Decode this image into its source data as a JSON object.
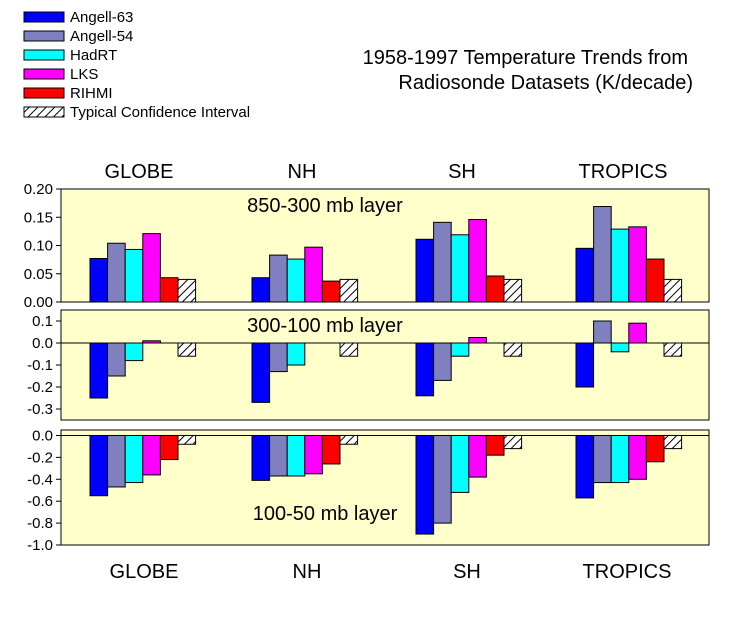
{
  "chart_data": {
    "type": "bar",
    "title": "1958-1997 Temperature Trends from\nRadiosonde Datasets (K/decade)",
    "categories": [
      "GLOBE",
      "NH",
      "SH",
      "TROPICS"
    ],
    "series": [
      {
        "name": "Angell-63",
        "color": "#0000ff"
      },
      {
        "name": "Angell-54",
        "color": "#8080c0"
      },
      {
        "name": "HadRT",
        "color": "#00ffff"
      },
      {
        "name": "LKS",
        "color": "#ff00ff"
      },
      {
        "name": "RIHMI",
        "color": "#ff0000"
      },
      {
        "name": "Typical Confidence Interval",
        "color": "#ffffff",
        "pattern": "hatch"
      }
    ],
    "panels": [
      {
        "label": "850-300 mb layer",
        "ylim": [
          0,
          0.2
        ],
        "yticks": [
          "0.20",
          "0.15",
          "0.10",
          "0.05",
          "0.00"
        ],
        "ytick_values": [
          0.2,
          0.15,
          0.1,
          0.05,
          0.0
        ],
        "values": [
          [
            0.077,
            0.104,
            0.093,
            0.121,
            0.043,
            0.04
          ],
          [
            0.043,
            0.083,
            0.076,
            0.097,
            0.037,
            0.04
          ],
          [
            0.111,
            0.141,
            0.119,
            0.146,
            0.046,
            0.04
          ],
          [
            0.095,
            0.169,
            0.129,
            0.133,
            0.076,
            0.04
          ]
        ]
      },
      {
        "label": "300-100 mb layer",
        "ylim": [
          -0.35,
          0.15
        ],
        "yticks": [
          "0.1",
          "0.0",
          "-0.1",
          "-0.2",
          "-0.3"
        ],
        "ytick_values": [
          0.1,
          0.0,
          -0.1,
          -0.2,
          -0.3
        ],
        "values": [
          [
            -0.25,
            -0.15,
            -0.08,
            0.01,
            0.0,
            -0.06
          ],
          [
            -0.27,
            -0.13,
            -0.1,
            0.0,
            0.0,
            -0.06
          ],
          [
            -0.24,
            -0.17,
            -0.06,
            0.025,
            0.0,
            -0.06
          ],
          [
            -0.2,
            0.1,
            -0.04,
            0.09,
            0.0,
            -0.06
          ]
        ]
      },
      {
        "label": "100-50 mb layer",
        "ylim": [
          -1.0,
          0.05
        ],
        "yticks": [
          "0.0",
          "-0.2",
          "-0.4",
          "-0.6",
          "-0.8",
          "-1.0"
        ],
        "ytick_values": [
          0.0,
          -0.2,
          -0.4,
          -0.6,
          -0.8,
          -1.0
        ],
        "values": [
          [
            -0.55,
            -0.47,
            -0.43,
            -0.36,
            -0.22,
            -0.08
          ],
          [
            -0.41,
            -0.37,
            -0.37,
            -0.35,
            -0.26,
            -0.08
          ],
          [
            -0.9,
            -0.8,
            -0.52,
            -0.38,
            -0.18,
            -0.12
          ],
          [
            -0.57,
            -0.43,
            -0.43,
            -0.4,
            -0.24,
            -0.12
          ]
        ]
      }
    ],
    "bottom_labels": [
      "GLOBE",
      "NH",
      "SH",
      "TROPICS"
    ],
    "top_labels": [
      "GLOBE",
      "NH",
      "SH",
      "TROPICS"
    ],
    "panel_background": "#ffffcc"
  }
}
